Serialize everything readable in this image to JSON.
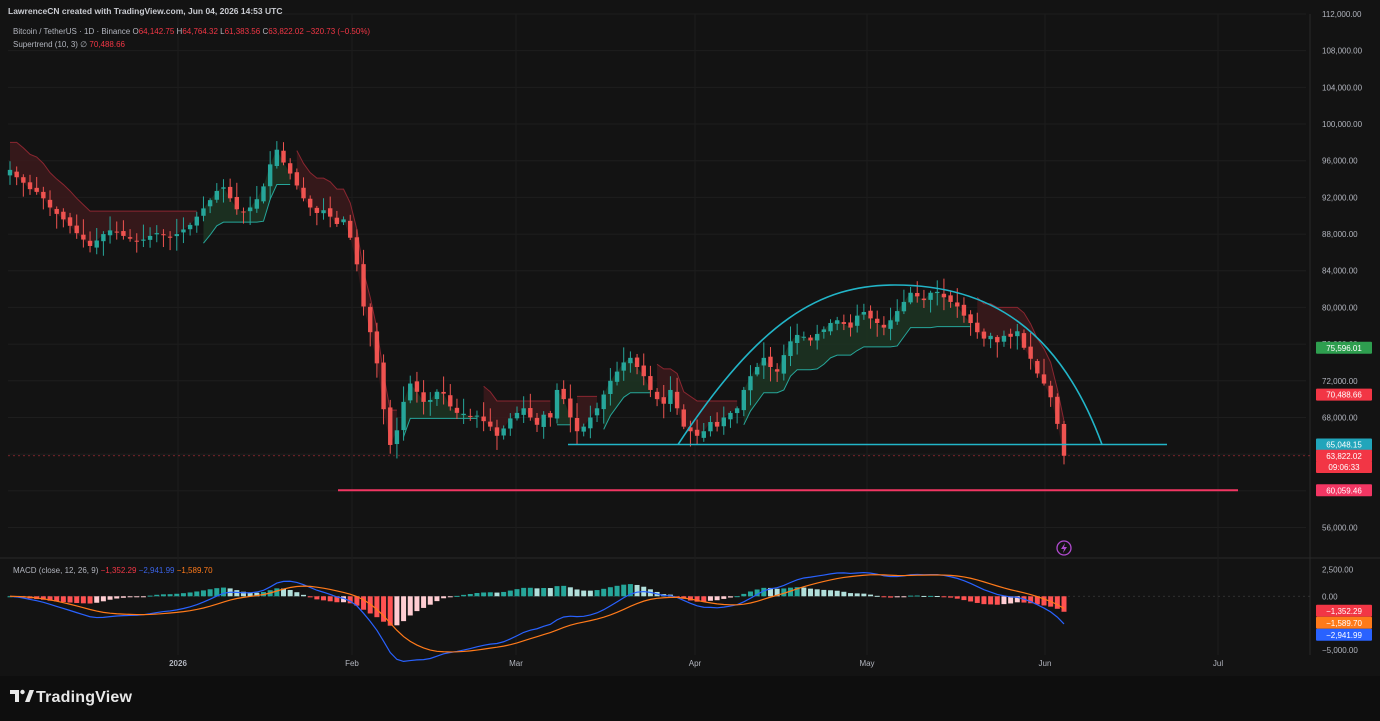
{
  "header": {
    "attribution": "LawrenceCN created with TradingView.com, Jun 04, 2026 14:53 UTC",
    "symbol": "Bitcoin / TetherUS · 1D · Binance",
    "ohlc": {
      "O": "64,142.75",
      "H": "64,764.32",
      "L": "61,383.56",
      "C": "63,822.02",
      "change": "−320.73 (−0.50%)"
    },
    "supertrend_label": "Supertrend (10, 3)",
    "supertrend_value": "70,488.66",
    "macd_label": "MACD (close, 12, 26, 9)",
    "macd_values": [
      "−1,352.29",
      "−2,941.99",
      "−1,589.70"
    ]
  },
  "footer": {
    "brand": "TradingView"
  },
  "colors": {
    "background": "#131313",
    "up": "#26a69a",
    "down": "#ef5350",
    "supertrend_up_fill": "#1d3322",
    "supertrend_down_fill": "#3a1a1c",
    "supertrend_down_line": "#8a2630",
    "pattern_line": "#22b5c8",
    "support_line": "#f23663",
    "macd_line": "#2962ff",
    "signal_line": "#ff7a1a"
  },
  "chart_data": [
    {
      "type": "candlestick",
      "title": "Bitcoin / TetherUS · 1D · Binance",
      "ylim": [
        53000,
        112000
      ],
      "y_ticks": [
        "112,000.00",
        "108,000.00",
        "104,000.00",
        "100,000.00",
        "96,000.00",
        "92,000.00",
        "88,000.00",
        "84,000.00",
        "80,000.00",
        "76,000.00",
        "72,000.00",
        "68,000.00",
        "64,000.00",
        "60,000.00",
        "56,000.00"
      ],
      "x_ticks": [
        "2026",
        "Feb",
        "Mar",
        "Apr",
        "May",
        "Jun",
        "Jul"
      ],
      "price_tags": [
        {
          "label": "75,596.01",
          "value": 75596,
          "color": "#2e9e4f"
        },
        {
          "label": "70,488.66",
          "value": 70488.66,
          "color": "#f23645"
        },
        {
          "label": "65,048.15",
          "value": 65048.15,
          "color": "#21a5bb"
        },
        {
          "label": "63,822.02",
          "value": 63822.02,
          "color": "#f23645"
        },
        {
          "label": "09:06:33",
          "value": 62600,
          "color": "#f23645"
        },
        {
          "label": "60,059.46",
          "value": 60059.46,
          "color": "#f23663"
        }
      ],
      "horizontal_levels": [
        {
          "name": "neckline",
          "value": 65048.15
        },
        {
          "name": "support",
          "value": 60059.46
        }
      ],
      "closes": [
        95000,
        94200,
        93600,
        92900,
        92600,
        91900,
        90900,
        90200,
        89600,
        88900,
        88100,
        87400,
        86700,
        87300,
        88000,
        88400,
        88200,
        87800,
        87500,
        87200,
        87400,
        87800,
        88100,
        87900,
        87600,
        88000,
        88500,
        89000,
        89900,
        90800,
        91700,
        92700,
        93100,
        91900,
        90700,
        90400,
        90900,
        91800,
        93200,
        95600,
        97200,
        95800,
        94600,
        93300,
        91900,
        90900,
        90300,
        90600,
        89900,
        89100,
        89600,
        87600,
        84700,
        80100,
        77300,
        73900,
        68900,
        65000,
        66600,
        69700,
        71700,
        70800,
        69700,
        69900,
        70800,
        70600,
        69200,
        68500,
        68400,
        68100,
        68200,
        67600,
        67000,
        66000,
        66800,
        67900,
        68500,
        69000,
        68000,
        67200,
        68300,
        68000,
        71000,
        70000,
        68000,
        66500,
        67000,
        68000,
        69000,
        70500,
        72000,
        73000,
        74000,
        74500,
        73500,
        72500,
        71000,
        70000,
        69500,
        71000,
        69000,
        67000,
        66500,
        66000,
        66500,
        67500,
        67000,
        68000,
        68500,
        69000,
        71000,
        72500,
        73500,
        74500,
        73500,
        73000,
        74800,
        76300,
        77000,
        76800,
        76400,
        77100,
        77600,
        78300,
        78600,
        78200,
        77800,
        79100,
        79500,
        78800,
        78300,
        77800,
        78600,
        79600,
        80600,
        81600,
        81200,
        80800,
        81600,
        81700,
        81100,
        80600,
        80100,
        79100,
        78300,
        77300,
        76600,
        76900,
        76200,
        76900,
        76800,
        77400,
        75600,
        74400,
        72800,
        71700,
        70200,
        67300,
        63822
      ],
      "supertrend": {
        "value": 70488.66,
        "direction": "down"
      }
    },
    {
      "type": "macd",
      "title": "MACD (close, 12, 26, 9)",
      "ylim": [
        -5200,
        3200
      ],
      "y_ticks": [
        "2,500.00",
        "0.00",
        "−5,000.00"
      ],
      "tags": [
        {
          "label": "−1,352.29",
          "value": -1352.29,
          "color": "#f23645"
        },
        {
          "label": "−1,589.70",
          "value": -1589.7,
          "color": "#ff7a1a"
        },
        {
          "label": "−2,941.99",
          "value": -2941.99,
          "color": "#2962ff"
        }
      ]
    }
  ]
}
